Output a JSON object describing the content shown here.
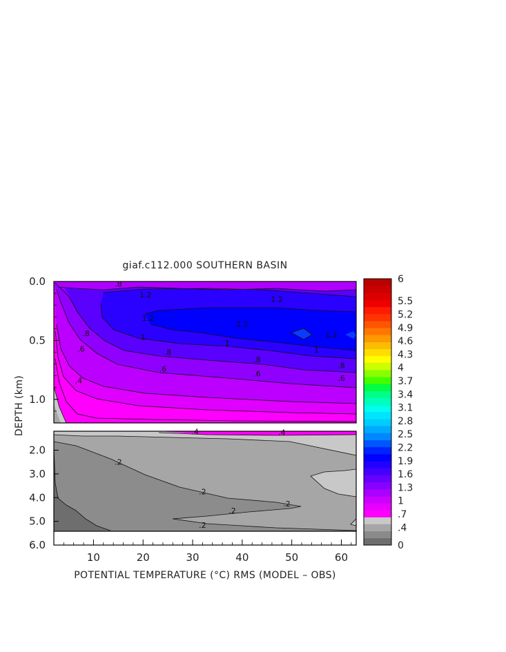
{
  "chart_data": {
    "type": "heatmap",
    "title": "giaf.c112.000 SOUTHERN BASIN",
    "xlabel": "POTENTIAL TEMPERATURE (°C) RMS (MODEL – OBS)",
    "ylabel": "DEPTH (km)",
    "xlim": [
      2,
      63
    ],
    "x_ticks": [
      10,
      20,
      30,
      40,
      50,
      60
    ],
    "x_tick_labels": [
      "10",
      "20",
      "30",
      "40",
      "50",
      "60"
    ],
    "upper_panel": {
      "ylim": [
        0.0,
        1.2
      ],
      "y_ticks": [
        0.0,
        0.5,
        1.0
      ],
      "y_tick_labels": [
        "0.0",
        "0.5",
        "1.0"
      ]
    },
    "lower_panel": {
      "ylim": [
        1.2,
        6.0
      ],
      "y_ticks": [
        2.0,
        3.0,
        4.0,
        5.0,
        6.0
      ],
      "y_tick_labels": [
        "2.0",
        "3.0",
        "4.0",
        "5.0",
        "6.0"
      ],
      "data_bottom_depth": 5.4
    },
    "colorbar": {
      "labels": [
        "0",
        ".4",
        ".7",
        "1",
        "1.3",
        "1.6",
        "1.9",
        "2.2",
        "2.5",
        "2.8",
        "3.1",
        "3.4",
        "3.7",
        "4",
        "4.3",
        "4.6",
        "4.9",
        "5.2",
        "5.5",
        "6"
      ],
      "label_values": [
        0,
        0.4,
        0.7,
        1,
        1.3,
        1.6,
        1.9,
        2.2,
        2.5,
        2.8,
        3.1,
        3.4,
        3.7,
        4,
        4.3,
        4.6,
        4.9,
        5.2,
        5.5,
        6
      ],
      "colors": [
        "#6e6e6e",
        "#8a8a8a",
        "#a6a6a6",
        "#c8c8c8",
        "#ff00ff",
        "#e600ff",
        "#cc00ff",
        "#aa00ff",
        "#8800ff",
        "#6600ff",
        "#4400ff",
        "#2200ff",
        "#0000ff",
        "#0022ff",
        "#0055ff",
        "#0088ff",
        "#00aaff",
        "#00ccff",
        "#00e5ff",
        "#00ffee",
        "#00ffbb",
        "#00ff88",
        "#00ff44",
        "#44ff00",
        "#88ff00",
        "#ccff00",
        "#ffff00",
        "#ffdd00",
        "#ffbb00",
        "#ff9900",
        "#ff7700",
        "#ff5500",
        "#ff3300",
        "#ff1a00",
        "#ee0000",
        "#dd0000",
        "#cc0000",
        "#bb0000"
      ]
    },
    "contour_labels_upper": [
      {
        "text": ".8",
        "x": 15,
        "depth": 0.02
      },
      {
        "text": "1.2",
        "x": 20.5,
        "depth": 0.11
      },
      {
        "text": "1.2",
        "x": 47,
        "depth": 0.15
      },
      {
        "text": "1.2",
        "x": 21,
        "depth": 0.31
      },
      {
        "text": "1.2",
        "x": 40,
        "depth": 0.36
      },
      {
        "text": "1.2",
        "x": 58,
        "depth": 0.45
      },
      {
        "text": "1",
        "x": 20,
        "depth": 0.47
      },
      {
        "text": "1",
        "x": 37,
        "depth": 0.52
      },
      {
        "text": "1",
        "x": 55,
        "depth": 0.58
      },
      {
        "text": ".8",
        "x": 8.5,
        "depth": 0.44
      },
      {
        "text": ".8",
        "x": 25,
        "depth": 0.6
      },
      {
        "text": ".8",
        "x": 43,
        "depth": 0.66
      },
      {
        "text": ".8",
        "x": 60,
        "depth": 0.71
      },
      {
        "text": ".6",
        "x": 7.5,
        "depth": 0.57
      },
      {
        "text": ".6",
        "x": 24,
        "depth": 0.74
      },
      {
        "text": ".6",
        "x": 43,
        "depth": 0.78
      },
      {
        "text": ".6",
        "x": 60,
        "depth": 0.82
      },
      {
        "text": ".4",
        "x": 7,
        "depth": 0.84
      }
    ],
    "contour_labels_lower": [
      {
        "text": ".4",
        "x": 30.5,
        "depth": 1.22
      },
      {
        "text": ".4",
        "x": 48,
        "depth": 1.25
      },
      {
        "text": ".2",
        "x": 15,
        "depth": 2.5
      },
      {
        "text": ".2",
        "x": 32,
        "depth": 3.75
      },
      {
        "text": ".2",
        "x": 49,
        "depth": 4.25
      },
      {
        "text": ".2",
        "x": 38,
        "depth": 4.55
      },
      {
        "text": ".2",
        "x": 32,
        "depth": 5.15
      }
    ]
  }
}
